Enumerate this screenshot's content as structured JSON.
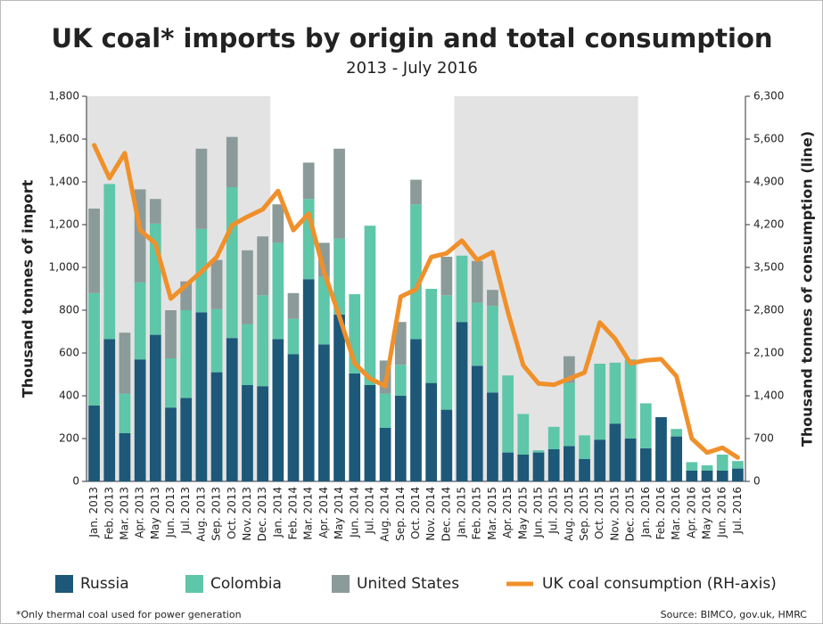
{
  "chart_data": {
    "type": "bar",
    "title": "UK coal* imports by origin and total consumption",
    "subtitle": "2013 - July 2016",
    "ylabel": "Thousand tonnes of import",
    "y2label": "Thousand tonnes of consumption (line)",
    "footnote": "*Only thermal coal used for power generation",
    "source": "Source: BIMCO, gov.uk, HMRC",
    "stacked": true,
    "categories": [
      "Jan. 2013",
      "Feb. 2013",
      "Mar. 2013",
      "Apr. 2013",
      "May 2013",
      "Jun. 2013",
      "Jul. 2013",
      "Aug. 2013",
      "Sep. 2013",
      "Oct. 2013",
      "Nov. 2013",
      "Dec. 2013",
      "Jan. 2014",
      "Feb. 2014",
      "Mar. 2014",
      "Apr. 2014",
      "May 2014",
      "Jun. 2014",
      "Jul. 2014",
      "Aug. 2014",
      "Sep. 2014",
      "Oct. 2014",
      "Nov. 2014",
      "Dec. 2014",
      "Jan. 2015",
      "Feb. 2015",
      "Mar. 2015",
      "Apr. 2015",
      "May 2015",
      "Jun. 2015",
      "Jul. 2015",
      "Aug. 2015",
      "Sep. 2015",
      "Oct. 2015",
      "Nov. 2015",
      "Dec. 2015",
      "Jan. 2016",
      "Feb. 2016",
      "Mar. 2016",
      "Apr. 2016",
      "May 2016",
      "Jun. 2016",
      "Jul. 2016"
    ],
    "series": [
      {
        "name": "Russia",
        "color": "#1d5878",
        "values": [
          355,
          665,
          225,
          570,
          685,
          345,
          390,
          790,
          510,
          670,
          450,
          445,
          665,
          595,
          945,
          640,
          780,
          505,
          450,
          250,
          400,
          665,
          460,
          335,
          745,
          540,
          415,
          135,
          125,
          135,
          150,
          165,
          105,
          195,
          270,
          200,
          155,
          300,
          210,
          50,
          50,
          50,
          60
        ]
      },
      {
        "name": "Colombia",
        "color": "#5ec6a9",
        "values": [
          525,
          725,
          185,
          360,
          520,
          230,
          410,
          390,
          295,
          705,
          285,
          425,
          450,
          165,
          375,
          315,
          355,
          370,
          745,
          160,
          145,
          630,
          440,
          535,
          310,
          295,
          405,
          360,
          190,
          10,
          105,
          295,
          110,
          355,
          285,
          370,
          210,
          0,
          35,
          40,
          25,
          75,
          35
        ]
      },
      {
        "name": "United States",
        "color": "#8b9b99",
        "values": [
          395,
          0,
          285,
          435,
          115,
          225,
          135,
          375,
          230,
          235,
          345,
          275,
          180,
          120,
          170,
          160,
          420,
          0,
          0,
          155,
          200,
          115,
          0,
          180,
          0,
          195,
          75,
          0,
          0,
          0,
          0,
          125,
          0,
          0,
          0,
          0,
          0,
          0,
          0,
          0,
          0,
          0,
          0
        ]
      },
      {
        "name": "UK coal consumption (RH-axis)",
        "color": "#f0902a",
        "type": "line",
        "axis": "y2",
        "values": [
          5500,
          4960,
          5370,
          4110,
          3890,
          2990,
          3210,
          3430,
          3670,
          4190,
          4330,
          4450,
          4750,
          4110,
          4380,
          3430,
          2700,
          1930,
          1680,
          1560,
          3020,
          3140,
          3670,
          3730,
          3940,
          3620,
          3750,
          2770,
          1900,
          1600,
          1580,
          1680,
          1780,
          2600,
          2330,
          1930,
          1980,
          2000,
          1720,
          700,
          470,
          550,
          390
        ]
      }
    ],
    "ylim": [
      0,
      1800
    ],
    "yticks": [
      0,
      200,
      400,
      600,
      800,
      {
        "value": 1000,
        "label": "1,000"
      },
      {
        "value": 1200,
        "label": "1,200"
      },
      {
        "value": 1400,
        "label": "1,400"
      },
      {
        "value": 1600,
        "label": "1,600"
      },
      {
        "value": 1800,
        "label": "1,800"
      }
    ],
    "y2lim": [
      0,
      6300
    ],
    "y2ticks": [
      0,
      700,
      {
        "value": 1400,
        "label": "1,400"
      },
      {
        "value": 2100,
        "label": "2,100"
      },
      {
        "value": 2800,
        "label": "2,800"
      },
      {
        "value": 3500,
        "label": "3,500"
      },
      {
        "value": 4200,
        "label": "4,200"
      },
      {
        "value": 4900,
        "label": "4,900"
      },
      {
        "value": 5600,
        "label": "5,600"
      },
      {
        "value": 6300,
        "label": "6,300"
      }
    ],
    "grid": false,
    "legend": "bottom"
  }
}
